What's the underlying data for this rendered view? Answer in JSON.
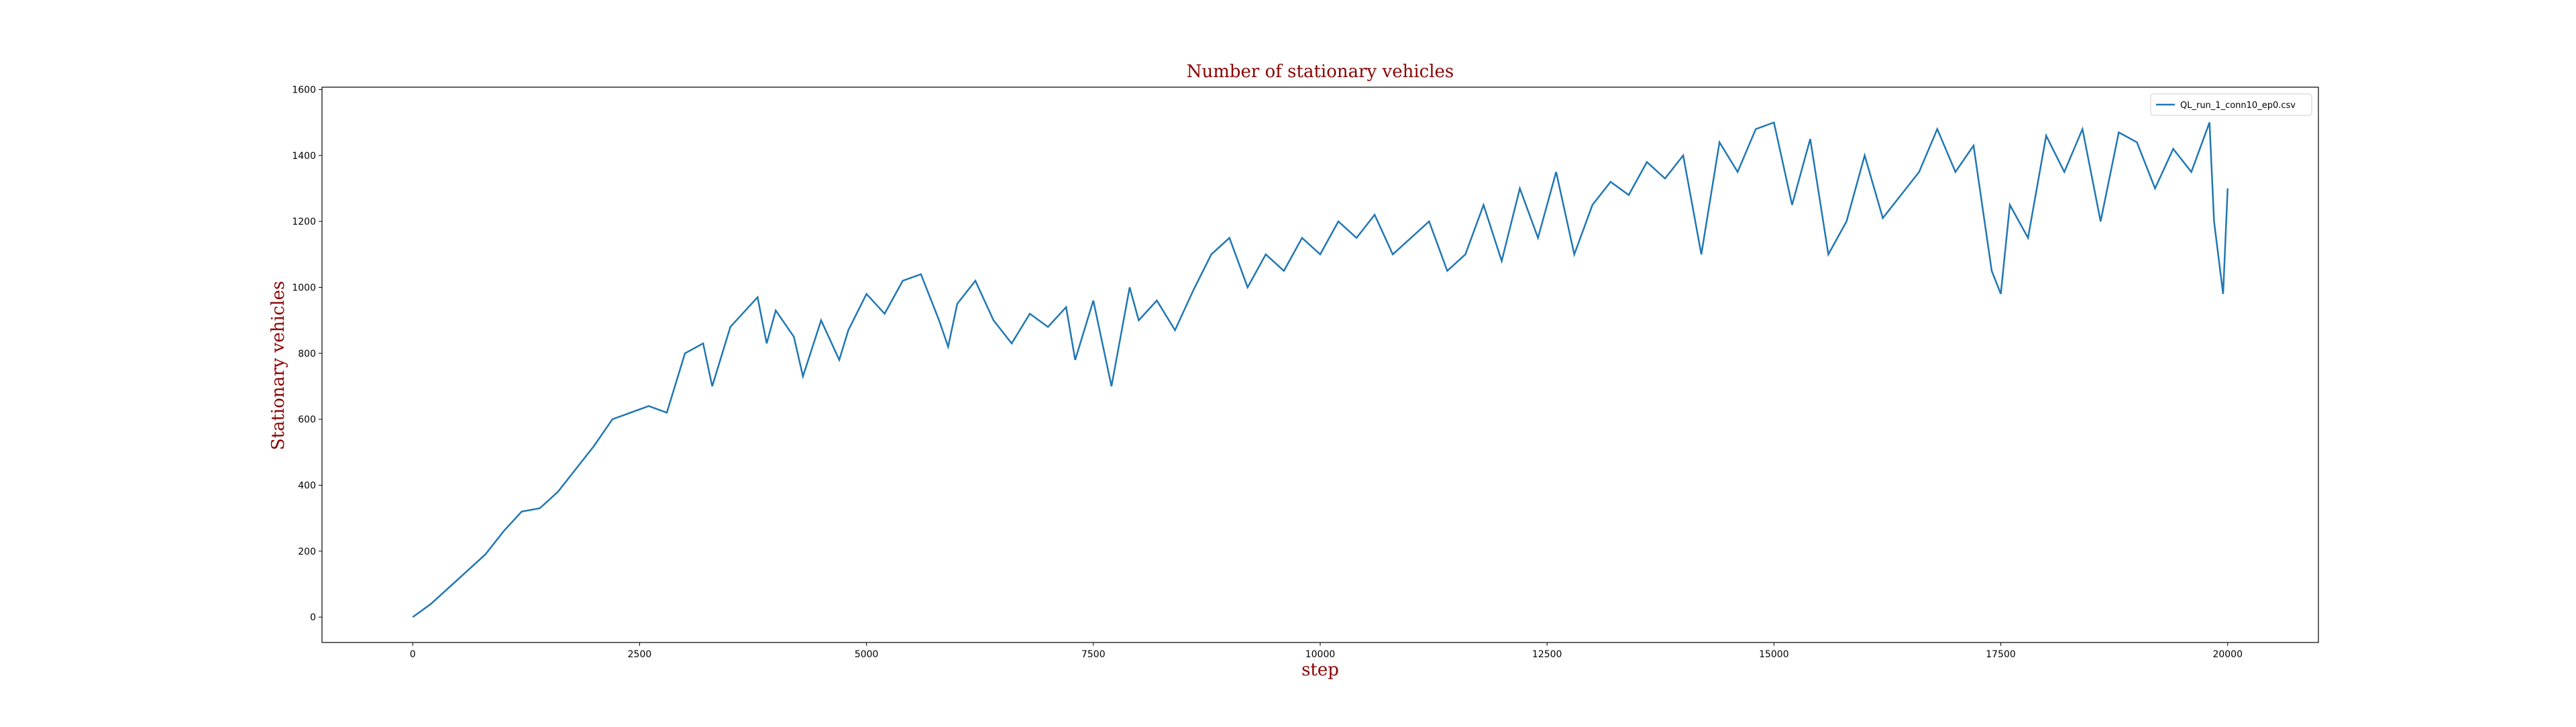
{
  "chart_data": {
    "type": "line",
    "title": "Number of stationary vehicles",
    "xlabel": "step",
    "ylabel": "Stationary vehicles",
    "x": [
      0,
      200,
      400,
      600,
      800,
      1000,
      1200,
      1400,
      1600,
      1800,
      2000,
      2200,
      2400,
      2600,
      2800,
      3000,
      3200,
      3300,
      3500,
      3700,
      3800,
      3900,
      4000,
      4200,
      4300,
      4500,
      4700,
      4800,
      5000,
      5200,
      5400,
      5600,
      5800,
      5900,
      6000,
      6200,
      6400,
      6600,
      6800,
      7000,
      7200,
      7300,
      7500,
      7700,
      7900,
      8000,
      8200,
      8400,
      8600,
      8800,
      9000,
      9200,
      9400,
      9600,
      9800,
      10000,
      10200,
      10400,
      10600,
      10800,
      11000,
      11200,
      11400,
      11600,
      11800,
      12000,
      12200,
      12400,
      12600,
      12800,
      13000,
      13200,
      13400,
      13600,
      13800,
      14000,
      14200,
      14400,
      14600,
      14800,
      15000,
      15200,
      15400,
      15600,
      15800,
      16000,
      16200,
      16400,
      16600,
      16800,
      17000,
      17200,
      17400,
      17500,
      17600,
      17800,
      18000,
      18200,
      18400,
      18600,
      18800,
      19000,
      19200,
      19400,
      19600,
      19800,
      19850,
      19950,
      20000
    ],
    "series": [
      {
        "name": "QL_run_1_conn10_ep0.csv",
        "color": "#1f77b4",
        "values": [
          0,
          40,
          90,
          140,
          190,
          260,
          320,
          330,
          380,
          450,
          520,
          600,
          620,
          640,
          620,
          800,
          830,
          700,
          880,
          940,
          970,
          830,
          930,
          850,
          730,
          900,
          780,
          870,
          980,
          920,
          1020,
          1040,
          900,
          820,
          950,
          1020,
          900,
          830,
          920,
          880,
          940,
          780,
          960,
          700,
          1000,
          900,
          960,
          870,
          990,
          1100,
          1150,
          1000,
          1100,
          1050,
          1150,
          1100,
          1200,
          1150,
          1220,
          1100,
          1150,
          1200,
          1050,
          1100,
          1250,
          1080,
          1300,
          1150,
          1350,
          1100,
          1250,
          1320,
          1280,
          1380,
          1330,
          1400,
          1100,
          1440,
          1350,
          1480,
          1500,
          1250,
          1450,
          1100,
          1200,
          1400,
          1210,
          1280,
          1350,
          1480,
          1350,
          1430,
          1050,
          980,
          1250,
          1150,
          1460,
          1350,
          1480,
          1200,
          1470,
          1440,
          1300,
          1420,
          1350,
          1500,
          1200,
          980,
          1300
        ]
      }
    ],
    "xlim": [
      -1000,
      21000
    ],
    "ylim": [
      -77,
      1607
    ],
    "xticks": [
      0,
      2500,
      5000,
      7500,
      10000,
      12500,
      15000,
      17500,
      20000
    ],
    "yticks": [
      0,
      200,
      400,
      600,
      800,
      1000,
      1200,
      1400,
      1600
    ],
    "legend": "upper right",
    "grid": false
  }
}
